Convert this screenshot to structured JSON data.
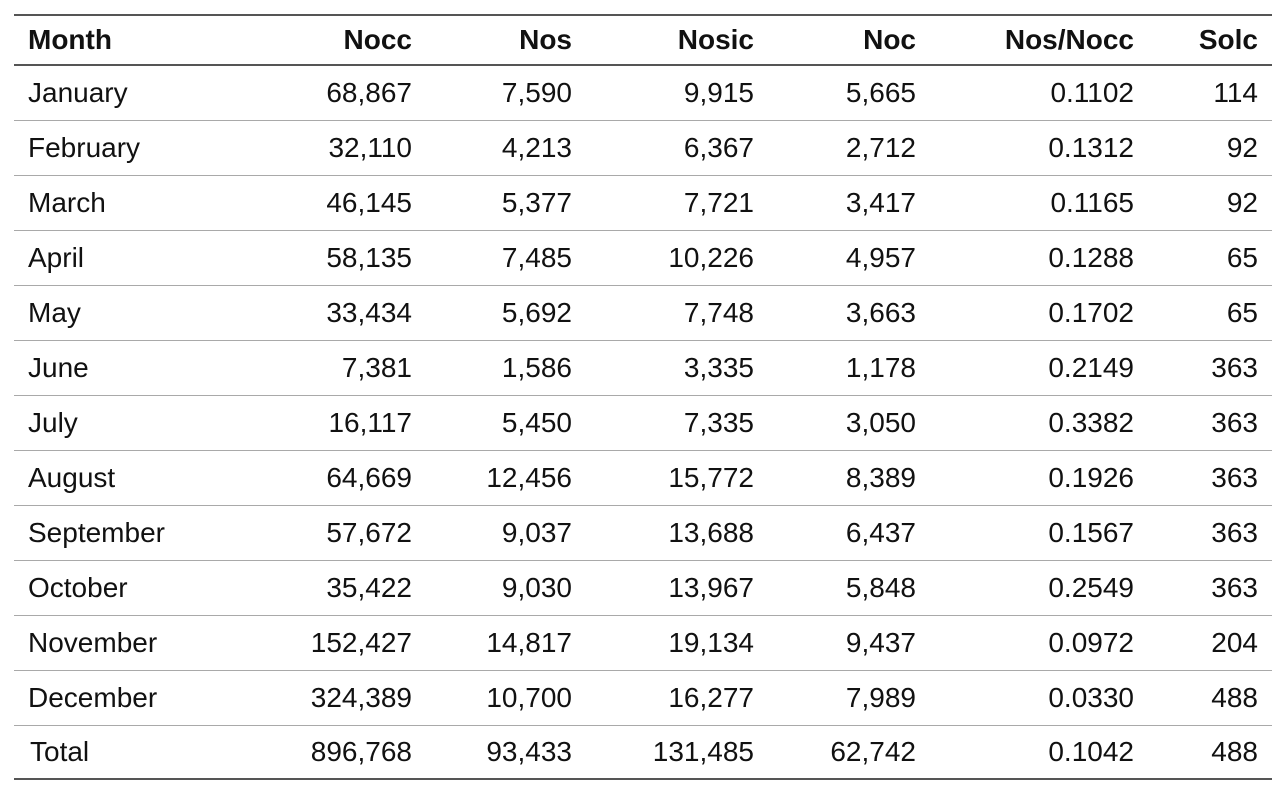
{
  "table": {
    "headers": [
      "Month",
      "Nocc",
      "Nos",
      "Nosic",
      "Noc",
      "Nos/Nocc",
      "Solc"
    ],
    "rows": [
      [
        "January",
        "68,867",
        "7,590",
        "9,915",
        "5,665",
        "0.1102",
        "114"
      ],
      [
        "February",
        "32,110",
        "4,213",
        "6,367",
        "2,712",
        "0.1312",
        "92"
      ],
      [
        "March",
        "46,145",
        "5,377",
        "7,721",
        "3,417",
        "0.1165",
        "92"
      ],
      [
        "April",
        "58,135",
        "7,485",
        "10,226",
        "4,957",
        "0.1288",
        "65"
      ],
      [
        "May",
        "33,434",
        "5,692",
        "7,748",
        "3,663",
        "0.1702",
        "65"
      ],
      [
        "June",
        "7,381",
        "1,586",
        "3,335",
        "1,178",
        "0.2149",
        "363"
      ],
      [
        "July",
        "16,117",
        "5,450",
        "7,335",
        "3,050",
        "0.3382",
        "363"
      ],
      [
        "August",
        "64,669",
        "12,456",
        "15,772",
        "8,389",
        "0.1926",
        "363"
      ],
      [
        "September",
        "57,672",
        "9,037",
        "13,688",
        "6,437",
        "0.1567",
        "363"
      ],
      [
        "October",
        "35,422",
        "9,030",
        "13,967",
        "5,848",
        "0.2549",
        "363"
      ],
      [
        "November",
        "152,427",
        "14,817",
        "19,134",
        "9,437",
        "0.0972",
        "204"
      ],
      [
        "December",
        "324,389",
        "10,700",
        "16,277",
        "7,989",
        "0.0330",
        "488"
      ]
    ],
    "total": [
      "Total",
      "896,768",
      "93,433",
      "131,485",
      "62,742",
      "0.1042",
      "488"
    ]
  }
}
